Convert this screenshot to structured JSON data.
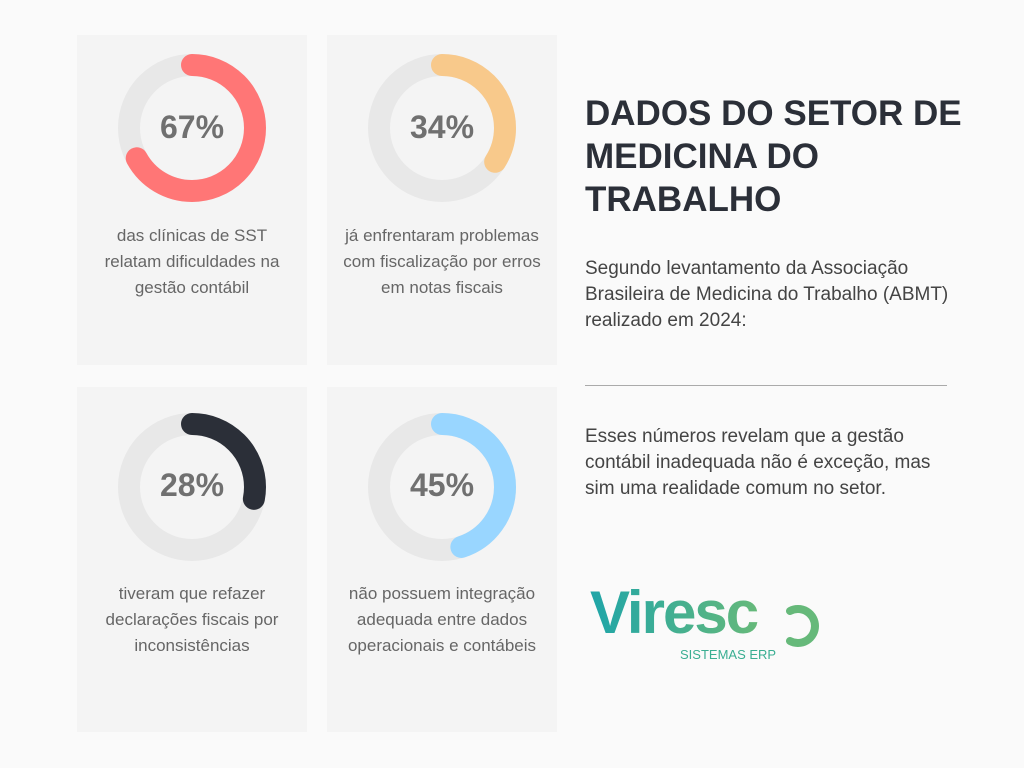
{
  "title": "DADOS DO SETOR DE MEDICINA DO TRABALHO",
  "intro": "Segundo levantamento da Associação Brasileira de Medicina do Trabalho (ABMT) realizado em 2024:",
  "conclusion": "Esses números revelam que a gestão contábil inadequada não é exceção, mas sim uma realidade comum no setor.",
  "logo": {
    "name": "Viresco",
    "tagline": "SISTEMAS ERP"
  },
  "stats": [
    {
      "value": 67,
      "label": "67%",
      "text": "das clínicas de SST relatam dificuldades na gestão contábil",
      "color": "#ff7676"
    },
    {
      "value": 34,
      "label": "34%",
      "text": "já enfrentaram problemas com fiscalização por erros em notas fiscais",
      "color": "#f8c98b"
    },
    {
      "value": 28,
      "label": "28%",
      "text": "tiveram que refazer declarações fiscais por inconsistências",
      "color": "#2b2f38"
    },
    {
      "value": 45,
      "label": "45%",
      "text": "não possuem integração adequada entre dados operacionais e contábeis",
      "color": "#99d6ff"
    }
  ]
}
